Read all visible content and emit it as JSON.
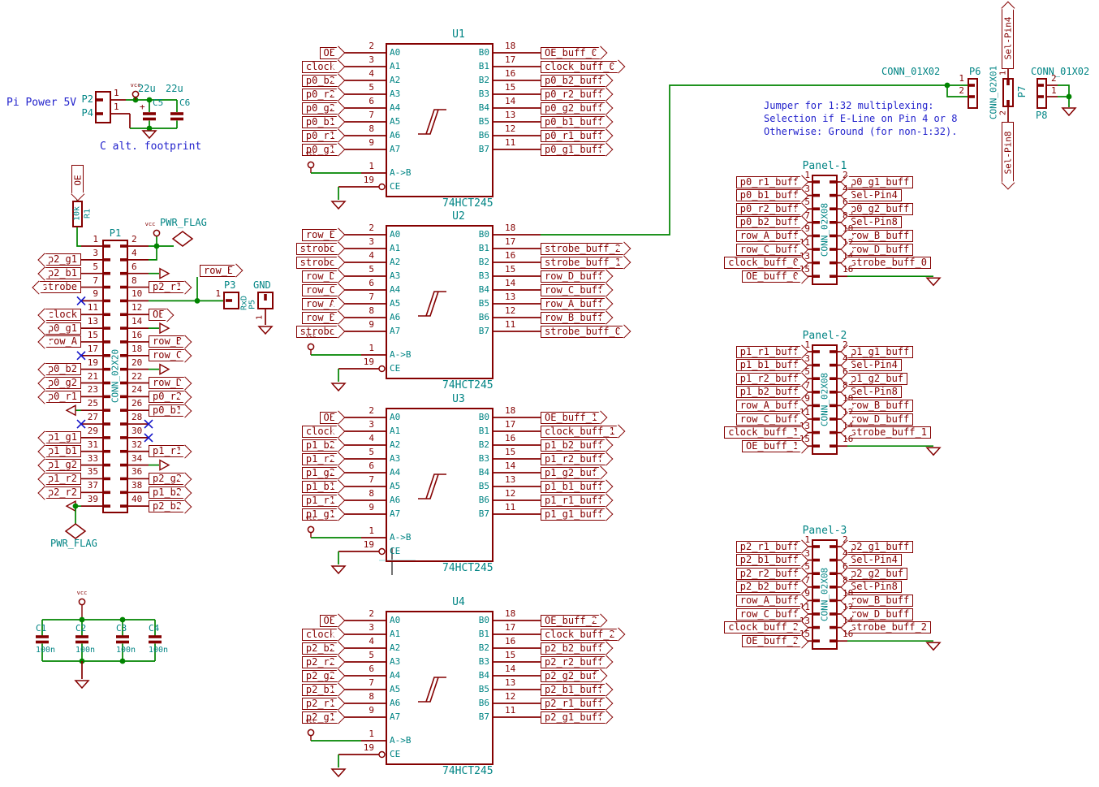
{
  "vcc": "vcc",
  "pwr_flag": "PWR_FLAG",
  "row_e": "row_E",
  "notes": {
    "power_title": "Pi Power 5V",
    "cap_note": "C alt. footprint"
  },
  "power": {
    "p2": {
      "ref": "P2",
      "pin": "1"
    },
    "p4": {
      "ref": "P4",
      "pin": "1"
    },
    "c5": {
      "ref": "C5",
      "value": "22u",
      "plus": "+"
    },
    "c6": {
      "ref": "C6",
      "value": "22u"
    }
  },
  "r1": {
    "label": "OE",
    "value": "10k",
    "ref": "R1"
  },
  "p1": {
    "ref": "P1",
    "value": "CONN_02X20",
    "left": [
      {
        "n": "1"
      },
      {
        "n": "3",
        "label": "p2_g1"
      },
      {
        "n": "5",
        "label": "p2_b1"
      },
      {
        "n": "7",
        "label": "strobe"
      },
      {
        "n": "9",
        "nc": true
      },
      {
        "n": "11",
        "label": "clock"
      },
      {
        "n": "13",
        "label": "p0_g1"
      },
      {
        "n": "15",
        "label": "row_A"
      },
      {
        "n": "17",
        "nc": true
      },
      {
        "n": "19",
        "label": "p0_b2"
      },
      {
        "n": "21",
        "label": "p0_g2"
      },
      {
        "n": "23",
        "label": "p0_r1"
      },
      {
        "n": "25",
        "gnd": true
      },
      {
        "n": "27",
        "nc": true
      },
      {
        "n": "29",
        "label": "p1_g1"
      },
      {
        "n": "31",
        "label": "p1_b1"
      },
      {
        "n": "33",
        "label": "p1_g2"
      },
      {
        "n": "35",
        "label": "p1_r2"
      },
      {
        "n": "37",
        "label": "p2_r2"
      },
      {
        "n": "39",
        "gnd": true,
        "flag": true
      }
    ],
    "right": [
      {
        "n": "2",
        "power": "vcc"
      },
      {
        "n": "4",
        "power": "vcc"
      },
      {
        "n": "6",
        "stub": true
      },
      {
        "n": "8",
        "label": "p2_r1"
      },
      {
        "n": "10",
        "label": "row_E"
      },
      {
        "n": "12",
        "label": "OE"
      },
      {
        "n": "14",
        "stub": true
      },
      {
        "n": "16",
        "label": "row_B"
      },
      {
        "n": "18",
        "label": "row_C"
      },
      {
        "n": "20",
        "stub": true
      },
      {
        "n": "22",
        "label": "row_D"
      },
      {
        "n": "24",
        "label": "p0_r2"
      },
      {
        "n": "26",
        "label": "p0_b1"
      },
      {
        "n": "28",
        "nc": true
      },
      {
        "n": "30",
        "nc": true
      },
      {
        "n": "32",
        "label": "p1_r1"
      },
      {
        "n": "34",
        "stub": true
      },
      {
        "n": "36",
        "label": "p2_g2"
      },
      {
        "n": "38",
        "label": "p1_b2"
      },
      {
        "n": "40",
        "label": "p2_b2"
      }
    ]
  },
  "p3": {
    "ref": "P3",
    "pin": "1"
  },
  "p5": {
    "ref": "P5",
    "signal": "RxD"
  },
  "gnd_conn": {
    "ref": "GND",
    "pin": "1"
  },
  "chips": [
    {
      "ref": "U1",
      "value": "74HCT245",
      "left": [
        {
          "pin": "2",
          "name": "A0",
          "label": "OE"
        },
        {
          "pin": "3",
          "name": "A1",
          "label": "clock"
        },
        {
          "pin": "4",
          "name": "A2",
          "label": "p0_b2"
        },
        {
          "pin": "5",
          "name": "A3",
          "label": "p0_r2"
        },
        {
          "pin": "6",
          "name": "A4",
          "label": "p0_g2"
        },
        {
          "pin": "7",
          "name": "A5",
          "label": "p0_b1"
        },
        {
          "pin": "8",
          "name": "A6",
          "label": "p0_r1"
        },
        {
          "pin": "9",
          "name": "A7",
          "label": "p0_g1"
        }
      ],
      "right": [
        {
          "pin": "18",
          "name": "B0",
          "label": "OE_buff_0"
        },
        {
          "pin": "17",
          "name": "B1",
          "label": "clock_buff_0"
        },
        {
          "pin": "16",
          "name": "B2",
          "label": "p0_b2_buff"
        },
        {
          "pin": "15",
          "name": "B3",
          "label": "p0_r2_buff"
        },
        {
          "pin": "14",
          "name": "B4",
          "label": "p0_g2_buff"
        },
        {
          "pin": "13",
          "name": "B5",
          "label": "p0_b1_buff"
        },
        {
          "pin": "12",
          "name": "B6",
          "label": "p0_r1_buff"
        },
        {
          "pin": "11",
          "name": "B7",
          "label": "p0_g1_buff"
        }
      ],
      "ctrl": [
        {
          "pin": "1",
          "name": "A->B"
        },
        {
          "pin": "19",
          "name": "CE"
        }
      ]
    },
    {
      "ref": "U2",
      "value": "74HCT245",
      "left": [
        {
          "pin": "2",
          "name": "A0",
          "label": "row_E"
        },
        {
          "pin": "3",
          "name": "A1",
          "label": "strobe"
        },
        {
          "pin": "4",
          "name": "A2",
          "label": "strobe"
        },
        {
          "pin": "5",
          "name": "A3",
          "label": "row_D"
        },
        {
          "pin": "6",
          "name": "A4",
          "label": "row_C"
        },
        {
          "pin": "7",
          "name": "A5",
          "label": "row_A"
        },
        {
          "pin": "8",
          "name": "A6",
          "label": "row_B"
        },
        {
          "pin": "9",
          "name": "A7",
          "label": "strobe"
        }
      ],
      "right": [
        {
          "pin": "18",
          "name": "B0"
        },
        {
          "pin": "17",
          "name": "B1",
          "label": "strobe_buff_2"
        },
        {
          "pin": "16",
          "name": "B2",
          "label": "strobe_buff_1"
        },
        {
          "pin": "15",
          "name": "B3",
          "label": "row_D_buff"
        },
        {
          "pin": "14",
          "name": "B4",
          "label": "row_C_buff"
        },
        {
          "pin": "13",
          "name": "B5",
          "label": "row_A_buff"
        },
        {
          "pin": "12",
          "name": "B6",
          "label": "row_B_buff"
        },
        {
          "pin": "11",
          "name": "B7",
          "label": "strobe_buff_0"
        }
      ],
      "ctrl": [
        {
          "pin": "1",
          "name": "A->B"
        },
        {
          "pin": "19",
          "name": "CE"
        }
      ]
    },
    {
      "ref": "U3",
      "value": "74HCT245",
      "left": [
        {
          "pin": "2",
          "name": "A0",
          "label": "OE"
        },
        {
          "pin": "3",
          "name": "A1",
          "label": "clock"
        },
        {
          "pin": "4",
          "name": "A2",
          "label": "p1_b2"
        },
        {
          "pin": "5",
          "name": "A3",
          "label": "p1_r2"
        },
        {
          "pin": "6",
          "name": "A4",
          "label": "p1_g2"
        },
        {
          "pin": "7",
          "name": "A5",
          "label": "p1_b1"
        },
        {
          "pin": "8",
          "name": "A6",
          "label": "p1_r1"
        },
        {
          "pin": "9",
          "name": "A7",
          "label": "p1_g1"
        }
      ],
      "right": [
        {
          "pin": "18",
          "name": "B0",
          "label": "OE_buff_1"
        },
        {
          "pin": "17",
          "name": "B1",
          "label": "clock_buff_1"
        },
        {
          "pin": "16",
          "name": "B2",
          "label": "p1_b2_buff"
        },
        {
          "pin": "15",
          "name": "B3",
          "label": "p1_r2_buff"
        },
        {
          "pin": "14",
          "name": "B4",
          "label": "p1_g2_buf"
        },
        {
          "pin": "13",
          "name": "B5",
          "label": "p1_b1_buff"
        },
        {
          "pin": "12",
          "name": "B6",
          "label": "p1_r1_buff"
        },
        {
          "pin": "11",
          "name": "B7",
          "label": "p1_g1_buff"
        }
      ],
      "ctrl": [
        {
          "pin": "1",
          "name": "A->B"
        },
        {
          "pin": "19",
          "name": "CE"
        }
      ]
    },
    {
      "ref": "U4",
      "value": "74HCT245",
      "left": [
        {
          "pin": "2",
          "name": "A0",
          "label": "OE"
        },
        {
          "pin": "3",
          "name": "A1",
          "label": "clock"
        },
        {
          "pin": "4",
          "name": "A2",
          "label": "p2_b2"
        },
        {
          "pin": "5",
          "name": "A3",
          "label": "p2_r2"
        },
        {
          "pin": "6",
          "name": "A4",
          "label": "p2_g2"
        },
        {
          "pin": "7",
          "name": "A5",
          "label": "p2_b1"
        },
        {
          "pin": "8",
          "name": "A6",
          "label": "p2_r1"
        },
        {
          "pin": "9",
          "name": "A7",
          "label": "p2_g1"
        }
      ],
      "right": [
        {
          "pin": "18",
          "name": "B0",
          "label": "OE_buff_2"
        },
        {
          "pin": "17",
          "name": "B1",
          "label": "clock_buff_2"
        },
        {
          "pin": "16",
          "name": "B2",
          "label": "p2_b2_buff"
        },
        {
          "pin": "15",
          "name": "B3",
          "label": "p2_r2_buff"
        },
        {
          "pin": "14",
          "name": "B4",
          "label": "p2_g2_buf"
        },
        {
          "pin": "13",
          "name": "B5",
          "label": "p2_b1_buff"
        },
        {
          "pin": "12",
          "name": "B6",
          "label": "p2_r1_buff"
        },
        {
          "pin": "11",
          "name": "B7",
          "label": "p2_g1_buff"
        }
      ],
      "ctrl": [
        {
          "pin": "1",
          "name": "A->B"
        },
        {
          "pin": "19",
          "name": "CE"
        }
      ]
    }
  ],
  "panels": [
    {
      "ref": "Panel-1",
      "value": "CONN_02X08",
      "left": [
        {
          "pin": "1",
          "label": "p0_r1_buff"
        },
        {
          "pin": "3",
          "label": "p0_b1_buff"
        },
        {
          "pin": "5",
          "label": "p0_r2_buff"
        },
        {
          "pin": "7",
          "label": "p0_b2_buff"
        },
        {
          "pin": "9",
          "label": "row_A_buff"
        },
        {
          "pin": "11",
          "label": "row_C_buff"
        },
        {
          "pin": "13",
          "label": "clock_buff_0"
        },
        {
          "pin": "15",
          "label": "OE_buff_0"
        }
      ],
      "right": [
        {
          "pin": "2",
          "label": "p0_g1_buff"
        },
        {
          "pin": "4",
          "label": "Sel-Pin4"
        },
        {
          "pin": "6",
          "label": "p0_g2_buff"
        },
        {
          "pin": "8",
          "label": "Sel-Pin8"
        },
        {
          "pin": "10",
          "label": "row_B_buff"
        },
        {
          "pin": "12",
          "label": "row_D_buff"
        },
        {
          "pin": "14",
          "label": "strobe_buff_0"
        },
        {
          "pin": "16"
        }
      ]
    },
    {
      "ref": "Panel-2",
      "value": "CONN_02X08",
      "left": [
        {
          "pin": "1",
          "label": "p1_r1_buff"
        },
        {
          "pin": "3",
          "label": "p1_b1_buff"
        },
        {
          "pin": "5",
          "label": "p1_r2_buff"
        },
        {
          "pin": "7",
          "label": "p1_b2_buff"
        },
        {
          "pin": "9",
          "label": "row_A_buff"
        },
        {
          "pin": "11",
          "label": "row_C_buff"
        },
        {
          "pin": "13",
          "label": "clock_buff_1"
        },
        {
          "pin": "15",
          "label": "OE_buff_1"
        }
      ],
      "right": [
        {
          "pin": "2",
          "label": "p1_g1_buff"
        },
        {
          "pin": "4",
          "label": "Sel-Pin4"
        },
        {
          "pin": "6",
          "label": "p1_g2_buf"
        },
        {
          "pin": "8",
          "label": "Sel-Pin8"
        },
        {
          "pin": "10",
          "label": "row_B_buff"
        },
        {
          "pin": "12",
          "label": "row_D_buff"
        },
        {
          "pin": "14",
          "label": "strobe_buff_1"
        },
        {
          "pin": "16"
        }
      ]
    },
    {
      "ref": "Panel-3",
      "value": "CONN_02X08",
      "left": [
        {
          "pin": "1",
          "label": "p2_r1_buff"
        },
        {
          "pin": "3",
          "label": "p2_b1_buff"
        },
        {
          "pin": "5",
          "label": "p2_r2_buff"
        },
        {
          "pin": "7",
          "label": "p2_b2_buff"
        },
        {
          "pin": "9",
          "label": "row_A_buff"
        },
        {
          "pin": "11",
          "label": "row_C_buff"
        },
        {
          "pin": "13",
          "label": "clock_buff_2"
        },
        {
          "pin": "15",
          "label": "OE_buff_2"
        }
      ],
      "right": [
        {
          "pin": "2",
          "label": "p2_g1_buff"
        },
        {
          "pin": "4",
          "label": "Sel-Pin4"
        },
        {
          "pin": "6",
          "label": "p2_g2_buf"
        },
        {
          "pin": "8",
          "label": "Sel-Pin8"
        },
        {
          "pin": "10",
          "label": "row_B_buff"
        },
        {
          "pin": "12",
          "label": "row_D_buff"
        },
        {
          "pin": "14",
          "label": "strobe_buff_2"
        },
        {
          "pin": "16"
        }
      ]
    }
  ],
  "jumper": {
    "note": [
      "Jumper for 1:32 multiplexing:",
      "Selection if E-Line on Pin 4 or 8",
      "Otherwise: Ground (for non-1:32)."
    ],
    "p6": {
      "ref": "P6",
      "value": "CONN_01X02",
      "pins": [
        "1",
        "2"
      ]
    },
    "p7": {
      "ref": "P7",
      "value": "CONN_02X01",
      "pins": [
        "1",
        "2"
      ],
      "labels": [
        "Sel-Pin4",
        "Sel-Pin8"
      ]
    },
    "p8": {
      "ref": "P8",
      "value": "CONN_01X02",
      "pins": [
        "2",
        "1"
      ]
    }
  },
  "decap": {
    "caps": [
      {
        "ref": "C1",
        "value": "100n"
      },
      {
        "ref": "C2",
        "value": "100n"
      },
      {
        "ref": "C3",
        "value": "100n"
      },
      {
        "ref": "C4",
        "value": "100n"
      }
    ]
  }
}
